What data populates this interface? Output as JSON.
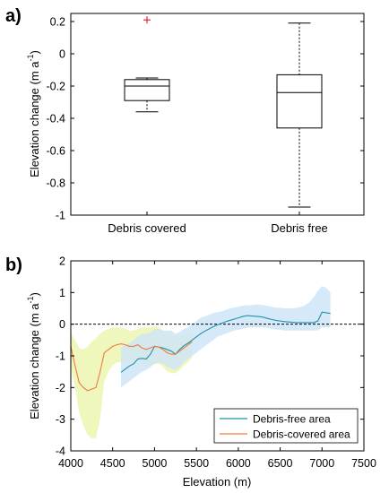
{
  "chart_data": [
    {
      "type": "box",
      "panel_label": "a)",
      "ylabel": "Elevation change (m a",
      "ylabel_sup": "-1",
      "ylabel_close": ")",
      "ylim": [
        -1,
        0.25
      ],
      "yticks": [
        -1,
        -0.8,
        -0.6,
        -0.4,
        -0.2,
        0,
        0.2
      ],
      "ytick_labels": [
        "-1",
        "-0.8",
        "-0.6",
        "-0.4",
        "-0.2",
        "0",
        "0.2"
      ],
      "categories": [
        "Debris covered",
        "Debris free"
      ],
      "boxes": [
        {
          "category": "Debris covered",
          "whisker_low": -0.36,
          "q1": -0.29,
          "median": -0.2,
          "q3": -0.16,
          "whisker_high": -0.15,
          "outliers": [
            0.21
          ]
        },
        {
          "category": "Debris free",
          "whisker_low": -0.95,
          "q1": -0.46,
          "median": -0.24,
          "q3": -0.13,
          "whisker_high": 0.19,
          "outliers": []
        }
      ],
      "outlier_color": "#e8000b"
    },
    {
      "type": "line",
      "panel_label": "b)",
      "xlabel": "Elevation (m)",
      "ylabel": "Elevation change (m a",
      "ylabel_sup": "-1",
      "ylabel_close": ")",
      "xlim": [
        4000,
        7500
      ],
      "ylim": [
        -4,
        2
      ],
      "xticks": [
        4000,
        4500,
        5000,
        5500,
        6000,
        6500,
        7000,
        7500
      ],
      "xtick_labels": [
        "4000",
        "4500",
        "5000",
        "5500",
        "6000",
        "6500",
        "7000",
        "7500"
      ],
      "yticks": [
        -4,
        -3,
        -2,
        -1,
        0,
        1,
        2
      ],
      "ytick_labels": [
        "-4",
        "-3",
        "-2",
        "-1",
        "0",
        "1",
        "2"
      ],
      "zero_line": "dashed",
      "legend_position": "bottom-right",
      "series": [
        {
          "name": "Debris-free area",
          "color": "#1b93a8",
          "band_color": "#cfe5f7",
          "x": [
            4600,
            4650,
            4700,
            4750,
            4800,
            4850,
            4900,
            4950,
            5000,
            5050,
            5100,
            5150,
            5200,
            5250,
            5300,
            5350,
            5400,
            5450,
            5500,
            5550,
            5600,
            5650,
            5700,
            5750,
            5800,
            5850,
            5900,
            5950,
            6000,
            6050,
            6100,
            6150,
            6200,
            6250,
            6300,
            6350,
            6400,
            6450,
            6500,
            6550,
            6600,
            6650,
            6700,
            6750,
            6800,
            6850,
            6900,
            6950,
            7000,
            7050,
            7100
          ],
          "y": [
            -1.52,
            -1.42,
            -1.32,
            -1.25,
            -1.1,
            -1.08,
            -1.1,
            -0.95,
            -0.7,
            -0.72,
            -0.75,
            -0.8,
            -0.85,
            -0.95,
            -0.8,
            -0.68,
            -0.6,
            -0.5,
            -0.4,
            -0.3,
            -0.22,
            -0.15,
            -0.08,
            -0.02,
            0.03,
            0.08,
            0.12,
            0.16,
            0.2,
            0.24,
            0.27,
            0.26,
            0.25,
            0.24,
            0.22,
            0.18,
            0.15,
            0.12,
            0.1,
            0.08,
            0.07,
            0.06,
            0.05,
            0.05,
            0.05,
            0.05,
            0.05,
            0.1,
            0.38,
            0.36,
            0.34
          ],
          "lower": [
            -2.0,
            -1.9,
            -1.8,
            -1.7,
            -1.6,
            -1.5,
            -1.45,
            -1.35,
            -1.25,
            -1.2,
            -1.25,
            -1.35,
            -1.4,
            -1.45,
            -1.35,
            -1.2,
            -1.1,
            -1.0,
            -0.9,
            -0.8,
            -0.7,
            -0.6,
            -0.5,
            -0.4,
            -0.35,
            -0.3,
            -0.25,
            -0.2,
            -0.18,
            -0.15,
            -0.12,
            -0.1,
            -0.1,
            -0.1,
            -0.1,
            -0.12,
            -0.15,
            -0.17,
            -0.18,
            -0.2,
            -0.2,
            -0.2,
            -0.2,
            -0.2,
            -0.2,
            -0.2,
            -0.2,
            -0.2,
            -0.1,
            -0.1,
            -0.1
          ],
          "upper": [
            -0.75,
            -0.65,
            -0.6,
            -0.5,
            -0.4,
            -0.3,
            -0.3,
            -0.25,
            -0.15,
            -0.15,
            -0.2,
            -0.2,
            -0.2,
            -0.3,
            -0.25,
            -0.15,
            -0.1,
            0.0,
            0.1,
            0.2,
            0.25,
            0.3,
            0.35,
            0.38,
            0.4,
            0.45,
            0.5,
            0.52,
            0.55,
            0.58,
            0.6,
            0.6,
            0.62,
            0.62,
            0.6,
            0.58,
            0.55,
            0.52,
            0.52,
            0.5,
            0.5,
            0.5,
            0.52,
            0.55,
            0.6,
            0.7,
            0.85,
            1.05,
            1.2,
            1.15,
            1.0
          ]
        },
        {
          "name": "Debris-covered area",
          "color": "#f07a3e",
          "band_color": "#eef6b6",
          "x": [
            4000,
            4050,
            4100,
            4150,
            4200,
            4250,
            4300,
            4350,
            4400,
            4450,
            4500,
            4550,
            4600,
            4650,
            4700,
            4750,
            4800,
            4850,
            4900,
            4950,
            5000,
            5050,
            5100,
            5150,
            5200,
            5250,
            5300,
            5350,
            5400,
            5450
          ],
          "y": [
            -0.7,
            -1.3,
            -1.85,
            -2.0,
            -2.1,
            -2.05,
            -2.0,
            -1.5,
            -0.9,
            -0.8,
            -0.7,
            -0.65,
            -0.62,
            -0.65,
            -0.7,
            -0.7,
            -0.65,
            -0.75,
            -0.8,
            -0.75,
            -0.7,
            -0.72,
            -0.8,
            -0.9,
            -0.95,
            -0.95,
            -0.85,
            -0.75,
            -0.65,
            -0.55
          ],
          "lower": [
            -1.3,
            -2.0,
            -2.8,
            -3.2,
            -3.5,
            -3.6,
            -3.6,
            -3.0,
            -1.8,
            -1.5,
            -1.3,
            -1.2,
            -1.2,
            -1.2,
            -1.25,
            -1.2,
            -1.15,
            -1.2,
            -1.3,
            -1.3,
            -1.25,
            -1.25,
            -1.35,
            -1.5,
            -1.55,
            -1.55,
            -1.45,
            -1.3,
            -1.2,
            -1.05
          ],
          "upper": [
            -0.3,
            -0.5,
            -0.75,
            -0.8,
            -0.7,
            -0.55,
            -0.45,
            -0.3,
            -0.2,
            -0.15,
            -0.1,
            -0.1,
            -0.1,
            -0.15,
            -0.2,
            -0.2,
            -0.15,
            -0.1,
            -0.1,
            -0.1,
            -0.05,
            -0.1,
            -0.2,
            -0.3,
            -0.35,
            -0.4,
            -0.4,
            -0.35,
            -0.3,
            -0.25
          ]
        }
      ]
    }
  ]
}
